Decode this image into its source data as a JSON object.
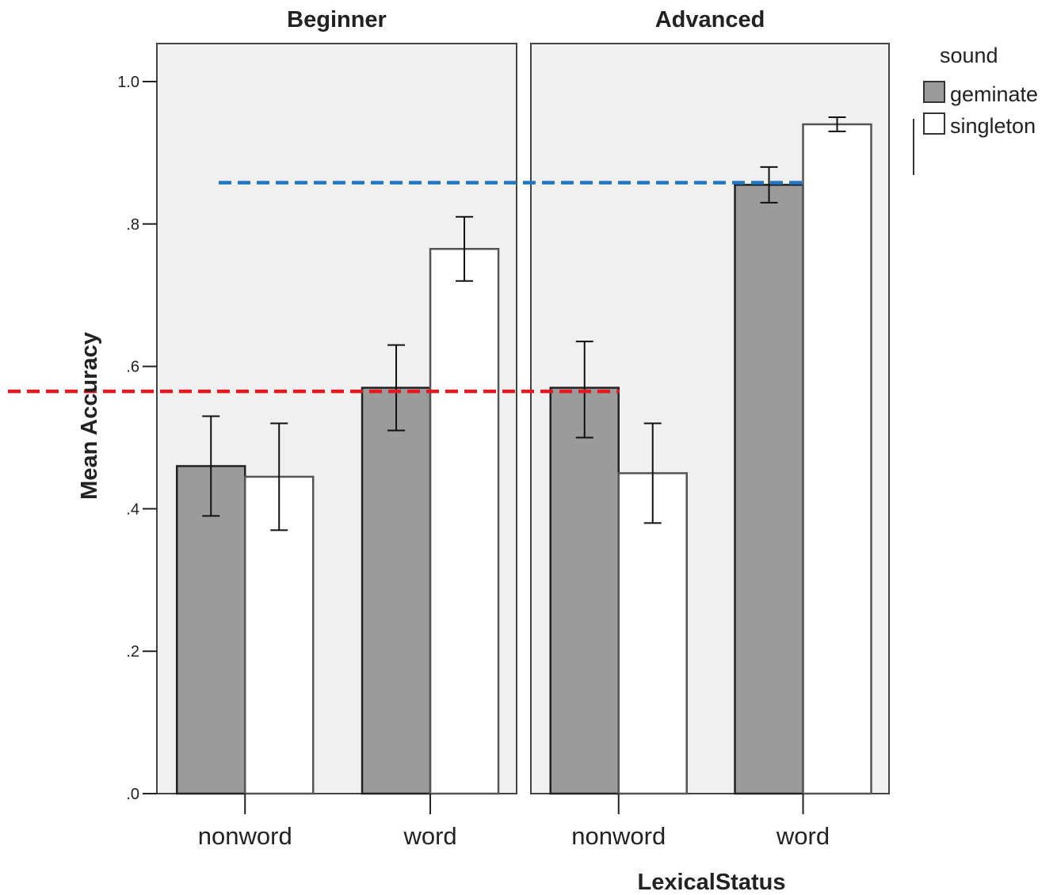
{
  "chart_data": {
    "type": "bar",
    "title": "",
    "xlabel": "LexicalStatus",
    "ylabel": "Mean Accuracy",
    "ylim": [
      0,
      1.05
    ],
    "yticks": [
      0.0,
      0.2,
      0.4,
      0.6,
      0.8,
      1.0
    ],
    "ytick_labels": [
      ".0",
      ".2",
      ".4",
      ".6",
      ".8",
      "1.0"
    ],
    "categories": [
      "nonword",
      "word"
    ],
    "legend": {
      "title": "sound",
      "position": "top-right",
      "entries": [
        "geminate",
        "singleton"
      ]
    },
    "colors": {
      "geminate": "#9b9b9b",
      "singleton": "#ffffff",
      "panel": "#f0f0f0",
      "blue_line": "#1f77c4",
      "red_line": "#e31a1c"
    },
    "facets": [
      {
        "name": "Beginner",
        "series": [
          {
            "name": "geminate",
            "values": [
              0.46,
              0.57
            ],
            "error_low": [
              0.39,
              0.51
            ],
            "error_high": [
              0.53,
              0.63
            ]
          },
          {
            "name": "singleton",
            "values": [
              0.445,
              0.765
            ],
            "error_low": [
              0.37,
              0.72
            ],
            "error_high": [
              0.52,
              0.81
            ]
          }
        ]
      },
      {
        "name": "Advanced",
        "series": [
          {
            "name": "geminate",
            "values": [
              0.57,
              0.855
            ],
            "error_low": [
              0.5,
              0.83
            ],
            "error_high": [
              0.635,
              0.88
            ]
          },
          {
            "name": "singleton",
            "values": [
              0.45,
              0.94
            ],
            "error_low": [
              0.38,
              0.93
            ],
            "error_high": [
              0.52,
              0.95
            ]
          }
        ]
      }
    ],
    "reference_lines": [
      {
        "color": "blue",
        "style": "dashed",
        "y": 0.858
      },
      {
        "color": "red",
        "style": "dashed",
        "y": 0.565
      }
    ]
  }
}
